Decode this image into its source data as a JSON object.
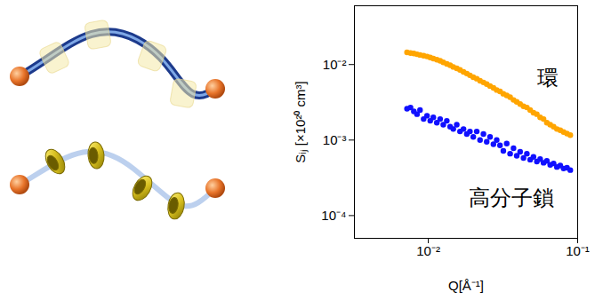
{
  "chart_data": {
    "type": "scatter",
    "x_label": "Q[Å⁻¹]",
    "y_label": "Sᵢⱼ [×10²⁰ cm³]",
    "log": true,
    "xlim": [
      0.0032,
      0.1
    ],
    "ylim": [
      5e-05,
      0.06
    ],
    "xticks": [
      {
        "value": 0.01,
        "label": "10⁻²"
      },
      {
        "value": 0.1,
        "label": "10⁻¹"
      }
    ],
    "yticks": [
      {
        "value": 0.0001,
        "label": "10⁻⁴"
      },
      {
        "value": 0.001,
        "label": "10⁻³"
      },
      {
        "value": 0.01,
        "label": "10⁻²"
      }
    ],
    "x": [
      0.0072,
      0.0076,
      0.008,
      0.0084,
      0.0088,
      0.0093,
      0.0098,
      0.0103,
      0.0108,
      0.0114,
      0.012,
      0.0126,
      0.0133,
      0.014,
      0.0147,
      0.0155,
      0.0163,
      0.0172,
      0.0181,
      0.019,
      0.02,
      0.0211,
      0.0222,
      0.0234,
      0.0246,
      0.0259,
      0.0273,
      0.0287,
      0.0302,
      0.0318,
      0.0335,
      0.0353,
      0.0372,
      0.0391,
      0.0412,
      0.0434,
      0.0457,
      0.0481,
      0.0506,
      0.0533,
      0.0561,
      0.0591,
      0.0622,
      0.0655,
      0.069,
      0.0726,
      0.0765,
      0.0805,
      0.0848,
      0.0893
    ],
    "series": [
      {
        "name": "環",
        "color": "#ffa500",
        "marker": "circle",
        "values": [
          0.0145,
          0.0142,
          0.014,
          0.0137,
          0.0134,
          0.0131,
          0.0128,
          0.0124,
          0.012,
          0.0116,
          0.0112,
          0.0107,
          0.0102,
          0.0098,
          0.0093,
          0.0089,
          0.0085,
          0.008,
          0.0076,
          0.0072,
          0.0068,
          0.0065,
          0.0061,
          0.0058,
          0.0055,
          0.0052,
          0.0049,
          0.0046,
          0.0044,
          0.0041,
          0.0039,
          0.0037,
          0.0034,
          0.0032,
          0.003,
          0.0028,
          0.0027,
          0.0025,
          0.0023,
          0.0022,
          0.002,
          0.0019,
          0.0017,
          0.0016,
          0.0015,
          0.0014,
          0.00135,
          0.00128,
          0.00122,
          0.00116
        ]
      },
      {
        "name": "高分子鎖",
        "color": "#1010ff",
        "marker": "circle",
        "values": [
          0.0026,
          0.0027,
          0.0024,
          0.0022,
          0.0025,
          0.0019,
          0.0021,
          0.0018,
          0.002,
          0.0017,
          0.0019,
          0.0016,
          0.0018,
          0.0015,
          0.0014,
          0.0016,
          0.0013,
          0.0014,
          0.0012,
          0.0013,
          0.0011,
          0.0013,
          0.001,
          0.0012,
          0.00095,
          0.0011,
          0.00088,
          0.001,
          0.00085,
          0.00072,
          0.0009,
          0.00066,
          0.00078,
          0.00062,
          0.0007,
          0.00058,
          0.00066,
          0.00055,
          0.0006,
          0.00052,
          0.00056,
          0.0005,
          0.00053,
          0.00047,
          0.00049,
          0.00044,
          0.00046,
          0.00042,
          0.00043,
          0.0004
        ]
      }
    ]
  }
}
